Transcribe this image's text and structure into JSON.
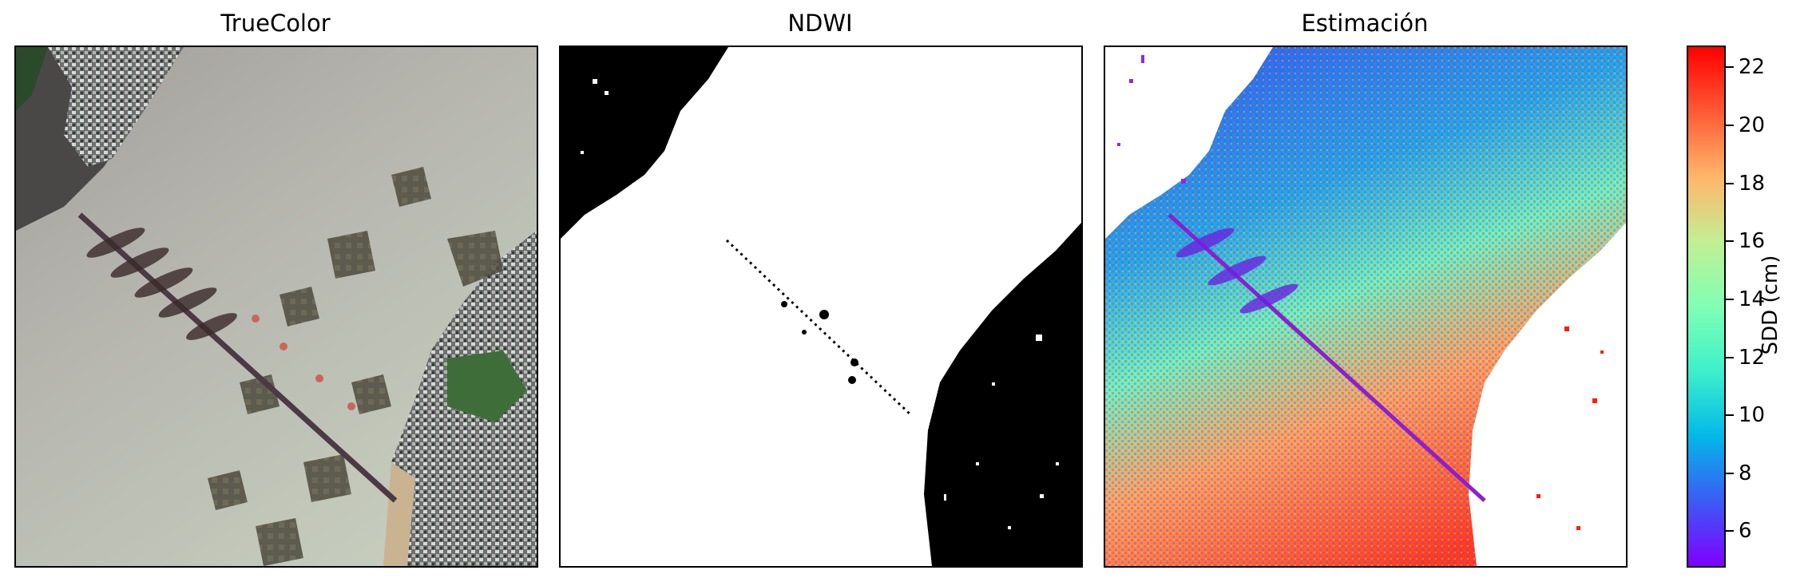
{
  "panels": [
    {
      "title": "TrueColor"
    },
    {
      "title": "NDWI"
    },
    {
      "title": "Estimación"
    }
  ],
  "colorbar": {
    "label": "SDD (cm)",
    "range": [
      4.8,
      22.7
    ],
    "ticks": [
      "6",
      "8",
      "10",
      "12",
      "14",
      "16",
      "18",
      "20",
      "22"
    ],
    "tick_values": [
      6,
      8,
      10,
      12,
      14,
      16,
      18,
      20,
      22
    ],
    "colormap": "rainbow",
    "colors": [
      "#7f00ff",
      "#3c5bf5",
      "#02b8e8",
      "#3ef0ca",
      "#80ffb4",
      "#c2ef93",
      "#ffb66b",
      "#ff5a35",
      "#ff0000"
    ]
  }
}
